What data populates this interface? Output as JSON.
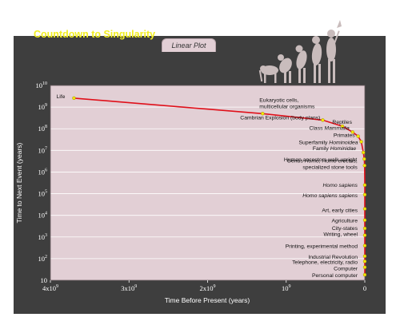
{
  "chart_data": {
    "type": "line",
    "title": "Countdown to Singularity",
    "subtitle": "Linear Plot",
    "xlabel": "Time Before Present (years)",
    "ylabel": "Time to Next Event (years)",
    "yscale": "log",
    "xlim": [
      4000000000,
      0
    ],
    "ylim": [
      10,
      10000000000
    ],
    "x_ticks": [
      {
        "value": 4000000000,
        "mant": "4x10",
        "exp": "9"
      },
      {
        "value": 3000000000,
        "mant": "3x10",
        "exp": "9"
      },
      {
        "value": 2000000000,
        "mant": "2x10",
        "exp": "9"
      },
      {
        "value": 1000000000,
        "mant": "10",
        "exp": "9"
      },
      {
        "value": 0,
        "mant": "0",
        "exp": ""
      }
    ],
    "y_ticks": [
      {
        "value": 10000000000,
        "mant": "10",
        "exp": "10"
      },
      {
        "value": 1000000000,
        "mant": "10",
        "exp": "9"
      },
      {
        "value": 100000000,
        "mant": "10",
        "exp": "8"
      },
      {
        "value": 10000000,
        "mant": "10",
        "exp": "7"
      },
      {
        "value": 1000000,
        "mant": "10",
        "exp": "6"
      },
      {
        "value": 100000,
        "mant": "10",
        "exp": "5"
      },
      {
        "value": 10000,
        "mant": "10",
        "exp": "4"
      },
      {
        "value": 1000,
        "mant": "10",
        "exp": "3"
      },
      {
        "value": 100,
        "mant": "10",
        "exp": "2"
      },
      {
        "value": 10,
        "mant": "10",
        "exp": ""
      }
    ],
    "grid": true,
    "line_color": "#e0101a",
    "marker_color": "#f4e600",
    "plot_background": "#e2cfd5",
    "points": [
      {
        "x": 3700000000,
        "y": 2600000000,
        "label": [
          "Life"
        ]
      },
      {
        "x": 1300000000,
        "y": 500000000,
        "label": [
          "Eukaryotic cells,",
          "multicellular organisms"
        ]
      },
      {
        "x": 535000000,
        "y": 250000000,
        "label": [
          "Cambrian Explosion (body plans)"
        ]
      },
      {
        "x": 285000000,
        "y": 130000000,
        "label": [
          "Reptiles"
        ]
      },
      {
        "x": 155000000,
        "y": 70000000,
        "label": [
          "Class *Mammalia*"
        ]
      },
      {
        "x": 85000000,
        "y": 45000000,
        "label": [
          "Primates"
        ]
      },
      {
        "x": 45000000,
        "y": 25000000,
        "label": [
          "Superfamily *Hominoidea*"
        ]
      },
      {
        "x": 18000000,
        "y": 8000000,
        "label": [
          "Family *Hominidae*"
        ]
      },
      {
        "x": 7000000,
        "y": 4000000,
        "label": [
          "Human ancestors walk upright"
        ]
      },
      {
        "x": 2500000,
        "y": 2000000,
        "label": [
          "Genus *Homo*, *Homo erectus*,",
          "specialized stone tools"
        ]
      },
      {
        "x": 400000,
        "y": 250000,
        "label": [
          "*Homo sapiens*"
        ]
      },
      {
        "x": 120000,
        "y": 90000,
        "label": [
          "*Homo sapiens sapiens*"
        ]
      },
      {
        "x": 30000,
        "y": 20000,
        "label": [
          "Art, early cities"
        ]
      },
      {
        "x": 10000,
        "y": 6000,
        "label": [
          "Agriculture"
        ]
      },
      {
        "x": 5000,
        "y": 2500,
        "label": [
          "City-states"
        ]
      },
      {
        "x": 3000,
        "y": 1200,
        "label": [
          "Writing, wheel"
        ]
      },
      {
        "x": 550,
        "y": 400,
        "label": [
          "Printing, experimental method"
        ]
      },
      {
        "x": 200,
        "y": 130,
        "label": [
          "Industrial Revolution"
        ]
      },
      {
        "x": 110,
        "y": 75,
        "label": [
          "Telephone, electricity, radio"
        ]
      },
      {
        "x": 60,
        "y": 40,
        "label": [
          "Computer"
        ]
      },
      {
        "x": 25,
        "y": 18,
        "label": [
          "Personal computer"
        ]
      }
    ]
  },
  "illustration": {
    "name": "evolution-silhouettes"
  }
}
